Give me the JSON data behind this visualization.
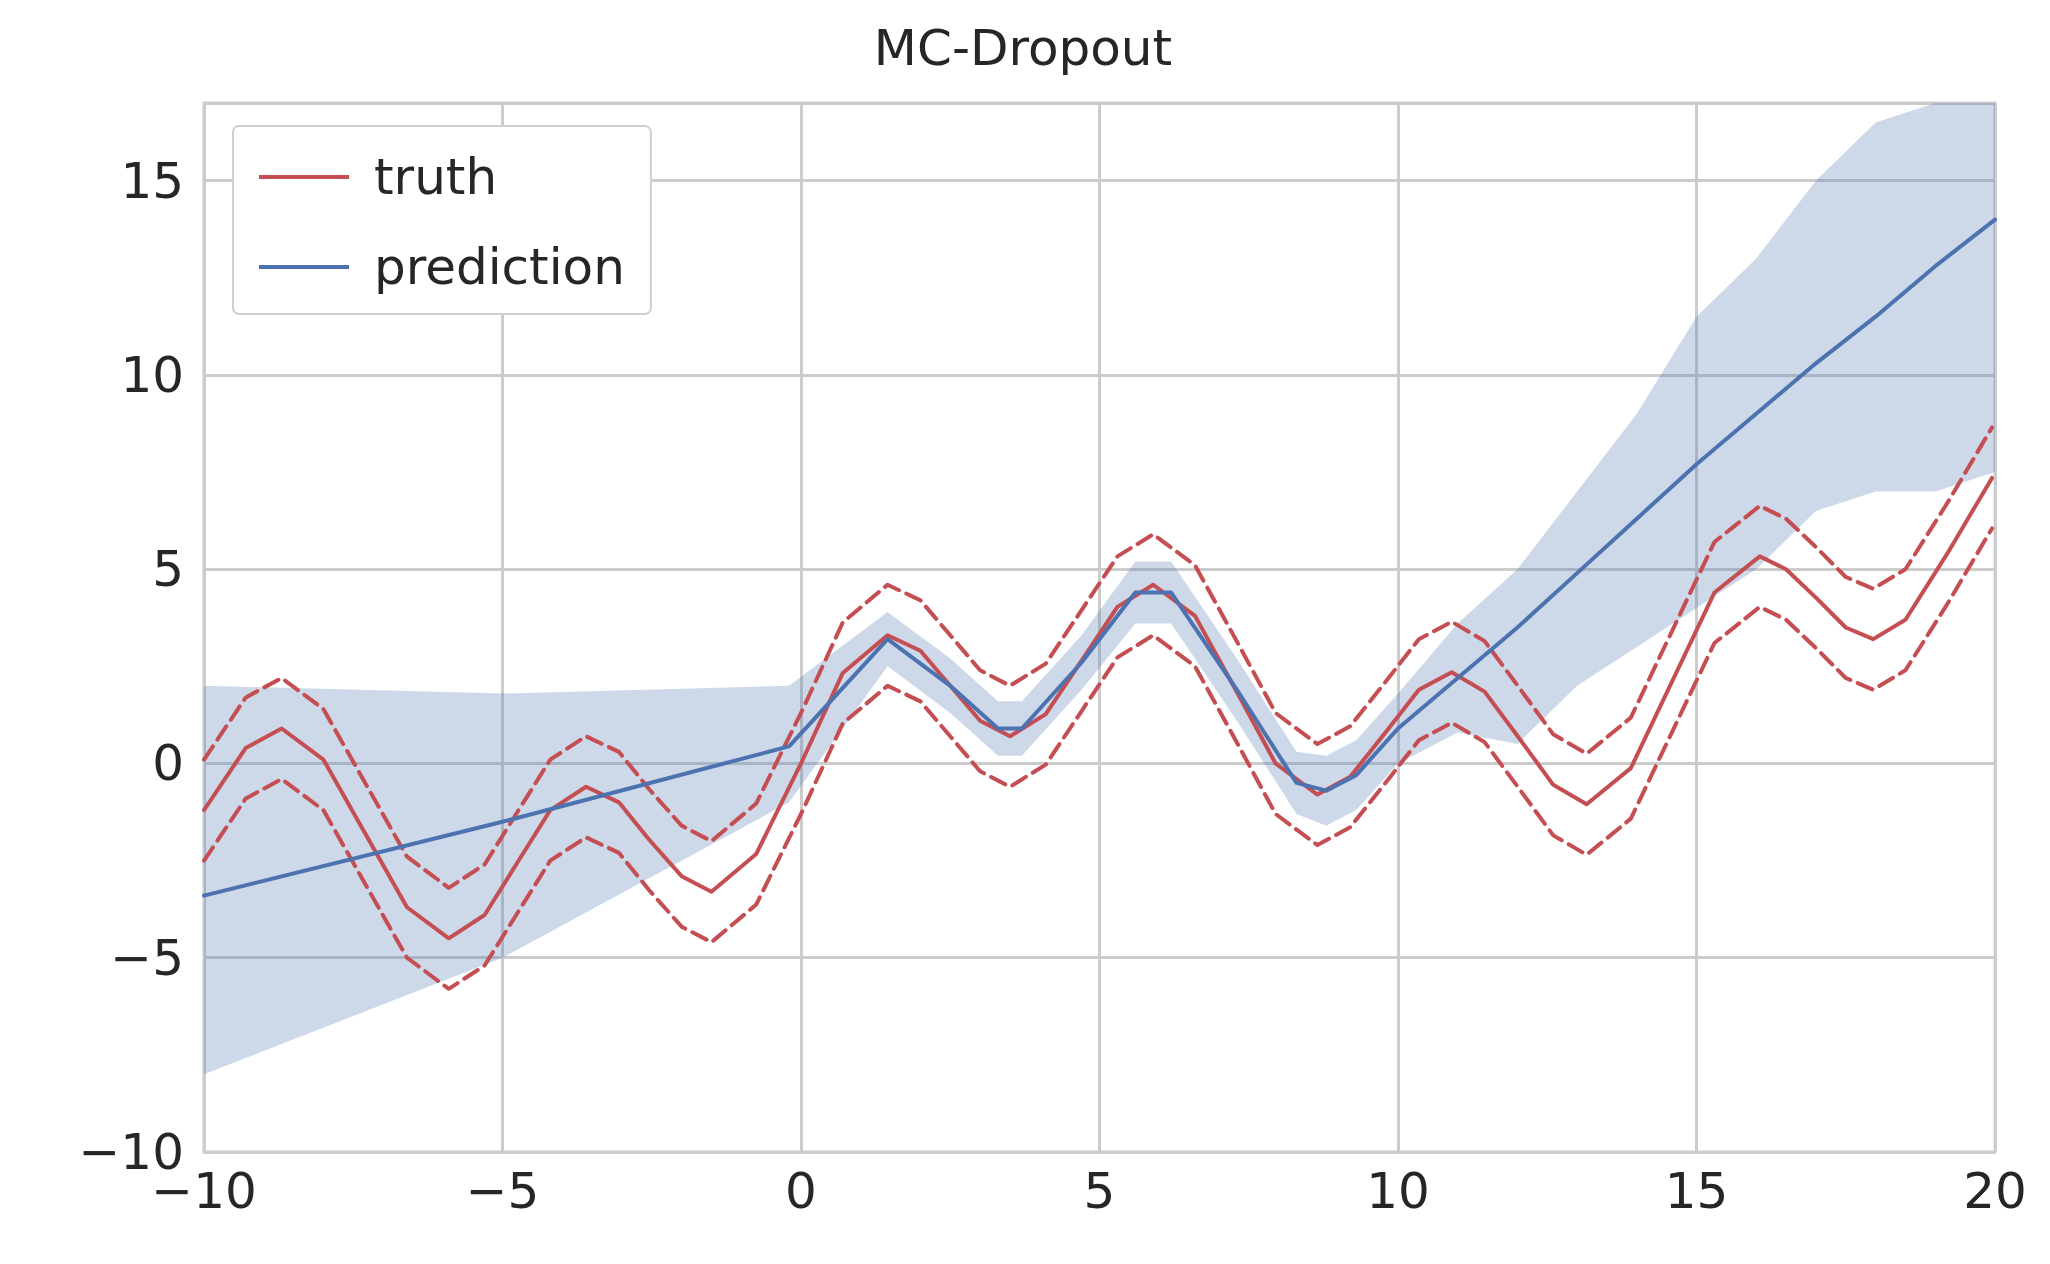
{
  "chart_data": {
    "type": "line",
    "title": "MC-Dropout",
    "xlim": [
      -10,
      20
    ],
    "ylim": [
      -10,
      17
    ],
    "xticks": [
      {
        "value": -10,
        "label": "−10"
      },
      {
        "value": -5,
        "label": "−5"
      },
      0,
      5,
      10,
      15,
      20
    ],
    "yticks": [
      {
        "value": -10,
        "label": "−10"
      },
      {
        "value": -5,
        "label": "−5"
      },
      0,
      5,
      10,
      15
    ],
    "grid": true,
    "legend": "top left",
    "line_style": "solid",
    "marker": "none",
    "series": [
      {
        "name": "truth",
        "color": "#c44e52",
        "x": [
          -10,
          -9.3,
          -8.7,
          -8,
          -7.3,
          -6.6,
          -5.9,
          -5.3,
          -4.75,
          -4.2,
          -3.6,
          -3.05,
          -2.55,
          -2.0,
          -1.5,
          -0.75,
          0,
          0.7,
          1.45,
          2.0,
          2.5,
          3.0,
          3.5,
          4.1,
          4.7,
          5.3,
          5.9,
          6.6,
          7.28,
          7.95,
          8.65,
          9.2,
          9.78,
          10.35,
          10.9,
          11.45,
          12.03,
          12.6,
          13.16,
          13.9,
          14.6,
          15.3,
          16.06,
          16.5,
          17.0,
          17.5,
          17.96,
          18.5,
          19.2,
          19.95
        ],
        "values": [
          -1.2,
          0.4,
          0.9,
          0.1,
          -1.8,
          -3.7,
          -4.5,
          -3.9,
          -2.55,
          -1.2,
          -0.6,
          -1.0,
          -1.95,
          -2.9,
          -3.3,
          -2.33,
          0,
          2.33,
          3.3,
          2.9,
          2.0,
          1.1,
          0.7,
          1.27,
          2.65,
          4.03,
          4.6,
          3.8,
          1.9,
          0.0,
          -0.8,
          -0.34,
          0.78,
          1.9,
          2.35,
          1.85,
          0.65,
          -0.55,
          -1.05,
          -0.12,
          2.14,
          4.4,
          5.33,
          5.0,
          4.27,
          3.5,
          3.2,
          3.7,
          5.4,
          7.35
        ]
      },
      {
        "color": "#c44e52",
        "line_style": "dashed",
        "x": [
          -10,
          -9.3,
          -8.7,
          -8,
          -7.3,
          -6.6,
          -5.9,
          -5.3,
          -4.75,
          -4.2,
          -3.6,
          -3.05,
          -2.55,
          -2.0,
          -1.5,
          -0.75,
          0,
          0.7,
          1.45,
          2.0,
          2.5,
          3.0,
          3.5,
          4.1,
          4.7,
          5.3,
          5.9,
          6.6,
          7.28,
          7.95,
          8.65,
          9.2,
          9.78,
          10.35,
          10.9,
          11.45,
          12.03,
          12.6,
          13.16,
          13.9,
          14.6,
          15.3,
          16.06,
          16.5,
          17.0,
          17.5,
          17.96,
          18.5,
          19.2,
          19.95
        ],
        "values": [
          0.1,
          1.7,
          2.2,
          1.4,
          -0.5,
          -2.4,
          -3.2,
          -2.6,
          -1.25,
          0.1,
          0.7,
          0.3,
          -0.65,
          -1.6,
          -2.0,
          -1.03,
          1.3,
          3.63,
          4.6,
          4.2,
          3.3,
          2.4,
          2.0,
          2.57,
          3.95,
          5.33,
          5.9,
          5.1,
          3.2,
          1.3,
          0.5,
          0.96,
          2.08,
          3.2,
          3.65,
          3.15,
          1.95,
          0.75,
          0.25,
          1.18,
          3.44,
          5.7,
          6.63,
          6.3,
          5.57,
          4.8,
          4.5,
          5.0,
          6.7,
          8.65
        ]
      },
      {
        "color": "#c44e52",
        "line_style": "dashed",
        "x": [
          -10,
          -9.3,
          -8.7,
          -8,
          -7.3,
          -6.6,
          -5.9,
          -5.3,
          -4.75,
          -4.2,
          -3.6,
          -3.05,
          -2.55,
          -2.0,
          -1.5,
          -0.75,
          0,
          0.7,
          1.45,
          2.0,
          2.5,
          3.0,
          3.5,
          4.1,
          4.7,
          5.3,
          5.9,
          6.6,
          7.28,
          7.95,
          8.65,
          9.2,
          9.78,
          10.35,
          10.9,
          11.45,
          12.03,
          12.6,
          13.16,
          13.9,
          14.6,
          15.3,
          16.06,
          16.5,
          17.0,
          17.5,
          17.96,
          18.5,
          19.2,
          19.95
        ],
        "values": [
          -2.5,
          -0.9,
          -0.4,
          -1.2,
          -3.1,
          -5.0,
          -5.8,
          -5.2,
          -3.85,
          -2.5,
          -1.9,
          -2.3,
          -3.25,
          -4.2,
          -4.6,
          -3.63,
          -1.3,
          1.03,
          2.0,
          1.6,
          0.7,
          -0.2,
          -0.6,
          -0.03,
          1.35,
          2.73,
          3.3,
          2.5,
          0.6,
          -1.3,
          -2.1,
          -1.64,
          -0.52,
          0.6,
          1.05,
          0.55,
          -0.65,
          -1.85,
          -2.35,
          -1.42,
          0.84,
          3.1,
          4.03,
          3.7,
          2.97,
          2.2,
          1.9,
          2.4,
          4.1,
          6.05
        ]
      },
      {
        "name": "prediction",
        "color": "#4c72b0",
        "x": [
          -10,
          -5,
          -0.2,
          1.45,
          2.5,
          3.3,
          3.7,
          4.7,
          5.6,
          6.2,
          7.3,
          8.3,
          8.8,
          9.3,
          10,
          11,
          12,
          13,
          14,
          15,
          16,
          17,
          18,
          19,
          20
        ],
        "values": [
          -3.4,
          -1.5,
          0.44,
          3.2,
          2.0,
          0.9,
          0.9,
          2.6,
          4.4,
          4.4,
          1.9,
          -0.5,
          -0.7,
          -0.3,
          0.9,
          2.2,
          3.5,
          4.9,
          6.3,
          7.7,
          9.0,
          10.3,
          11.5,
          12.8,
          14.0
        ],
        "lower": [
          -8,
          -5,
          -1,
          2.5,
          1.3,
          0.2,
          0.2,
          1.9,
          3.6,
          3.6,
          1.1,
          -1.3,
          -1.6,
          -1.2,
          0,
          0.8,
          0.5,
          2,
          3,
          4,
          5,
          6.5,
          7,
          7,
          7.5
        ],
        "upper": [
          2,
          1.8,
          2,
          3.9,
          2.7,
          1.6,
          1.6,
          3.3,
          5.2,
          5.2,
          2.7,
          0.3,
          0.2,
          0.6,
          1.8,
          3.6,
          5,
          7,
          9,
          11.5,
          13,
          15,
          16.5,
          17,
          17
        ]
      }
    ]
  }
}
